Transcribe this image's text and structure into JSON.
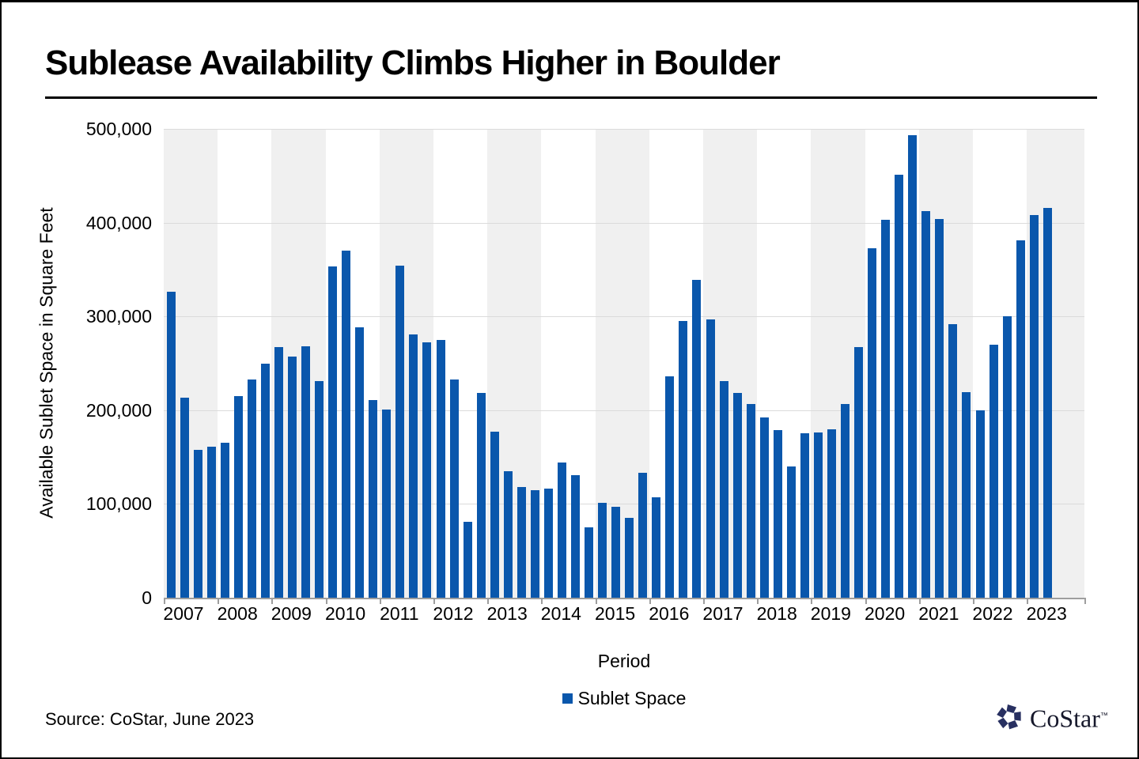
{
  "header": {
    "title": "Sublease Availability Climbs Higher in Boulder"
  },
  "chart_data": {
    "type": "bar",
    "title": "Sublease Availability Climbs Higher in Boulder",
    "xlabel": "Period",
    "ylabel": "Available Sublet Space in Square Feet",
    "ylim": [
      0,
      500000
    ],
    "ytick_interval": 100000,
    "ytick_labels": [
      "0",
      "100,000",
      "200,000",
      "300,000",
      "400,000",
      "500,000"
    ],
    "xtick_labels": [
      "2007",
      "2008",
      "2009",
      "2010",
      "2011",
      "2012",
      "2013",
      "2014",
      "2015",
      "2016",
      "2017",
      "2018",
      "2019",
      "2020",
      "2021",
      "2022",
      "2023"
    ],
    "grid": "horizontal",
    "legend_position": "bottom",
    "legend_label": "Sublet Space",
    "quarters_per_year": 4,
    "points": [
      {
        "period": "2007 Q1",
        "value": 326000
      },
      {
        "period": "2007 Q2",
        "value": 213000
      },
      {
        "period": "2007 Q3",
        "value": 158000
      },
      {
        "period": "2007 Q4",
        "value": 161000
      },
      {
        "period": "2008 Q1",
        "value": 165000
      },
      {
        "period": "2008 Q2",
        "value": 215000
      },
      {
        "period": "2008 Q3",
        "value": 233000
      },
      {
        "period": "2008 Q4",
        "value": 250000
      },
      {
        "period": "2009 Q1",
        "value": 267000
      },
      {
        "period": "2009 Q2",
        "value": 257000
      },
      {
        "period": "2009 Q3",
        "value": 268000
      },
      {
        "period": "2009 Q4",
        "value": 231000
      },
      {
        "period": "2010 Q1",
        "value": 353000
      },
      {
        "period": "2010 Q2",
        "value": 370000
      },
      {
        "period": "2010 Q3",
        "value": 288000
      },
      {
        "period": "2010 Q4",
        "value": 211000
      },
      {
        "period": "2011 Q1",
        "value": 201000
      },
      {
        "period": "2011 Q2",
        "value": 354000
      },
      {
        "period": "2011 Q3",
        "value": 281000
      },
      {
        "period": "2011 Q4",
        "value": 272000
      },
      {
        "period": "2012 Q1",
        "value": 275000
      },
      {
        "period": "2012 Q2",
        "value": 233000
      },
      {
        "period": "2012 Q3",
        "value": 81000
      },
      {
        "period": "2012 Q4",
        "value": 218000
      },
      {
        "period": "2013 Q1",
        "value": 177000
      },
      {
        "period": "2013 Q2",
        "value": 135000
      },
      {
        "period": "2013 Q3",
        "value": 118000
      },
      {
        "period": "2013 Q4",
        "value": 115000
      },
      {
        "period": "2014 Q1",
        "value": 116000
      },
      {
        "period": "2014 Q2",
        "value": 144000
      },
      {
        "period": "2014 Q3",
        "value": 131000
      },
      {
        "period": "2014 Q4",
        "value": 75000
      },
      {
        "period": "2015 Q1",
        "value": 101000
      },
      {
        "period": "2015 Q2",
        "value": 97000
      },
      {
        "period": "2015 Q3",
        "value": 85000
      },
      {
        "period": "2015 Q4",
        "value": 133000
      },
      {
        "period": "2016 Q1",
        "value": 107000
      },
      {
        "period": "2016 Q2",
        "value": 236000
      },
      {
        "period": "2016 Q3",
        "value": 295000
      },
      {
        "period": "2016 Q4",
        "value": 339000
      },
      {
        "period": "2017 Q1",
        "value": 297000
      },
      {
        "period": "2017 Q2",
        "value": 231000
      },
      {
        "period": "2017 Q3",
        "value": 218000
      },
      {
        "period": "2017 Q4",
        "value": 207000
      },
      {
        "period": "2018 Q1",
        "value": 192000
      },
      {
        "period": "2018 Q2",
        "value": 179000
      },
      {
        "period": "2018 Q3",
        "value": 140000
      },
      {
        "period": "2018 Q4",
        "value": 175000
      },
      {
        "period": "2019 Q1",
        "value": 176000
      },
      {
        "period": "2019 Q2",
        "value": 180000
      },
      {
        "period": "2019 Q3",
        "value": 207000
      },
      {
        "period": "2019 Q4",
        "value": 267000
      },
      {
        "period": "2020 Q1",
        "value": 373000
      },
      {
        "period": "2020 Q2",
        "value": 403000
      },
      {
        "period": "2020 Q3",
        "value": 451000
      },
      {
        "period": "2020 Q4",
        "value": 493000
      },
      {
        "period": "2021 Q1",
        "value": 412000
      },
      {
        "period": "2021 Q2",
        "value": 404000
      },
      {
        "period": "2021 Q3",
        "value": 292000
      },
      {
        "period": "2021 Q4",
        "value": 219000
      },
      {
        "period": "2022 Q1",
        "value": 200000
      },
      {
        "period": "2022 Q2",
        "value": 270000
      },
      {
        "period": "2022 Q3",
        "value": 300000
      },
      {
        "period": "2022 Q4",
        "value": 381000
      },
      {
        "period": "2023 Q1",
        "value": 408000
      },
      {
        "period": "2023 Q2",
        "value": 416000
      }
    ]
  },
  "footer": {
    "source": "Source: CoStar, June 2023",
    "logo_text": "CoStar",
    "logo_tm": "™"
  },
  "colors": {
    "bar": "#0A57AC",
    "band_shaded": "#F0F0F0",
    "band_plain": "#FFFFFF",
    "gridline": "#DBDBDB",
    "axis": "#9E9E9E",
    "logo_navy": "#283061",
    "text": "#000000"
  }
}
